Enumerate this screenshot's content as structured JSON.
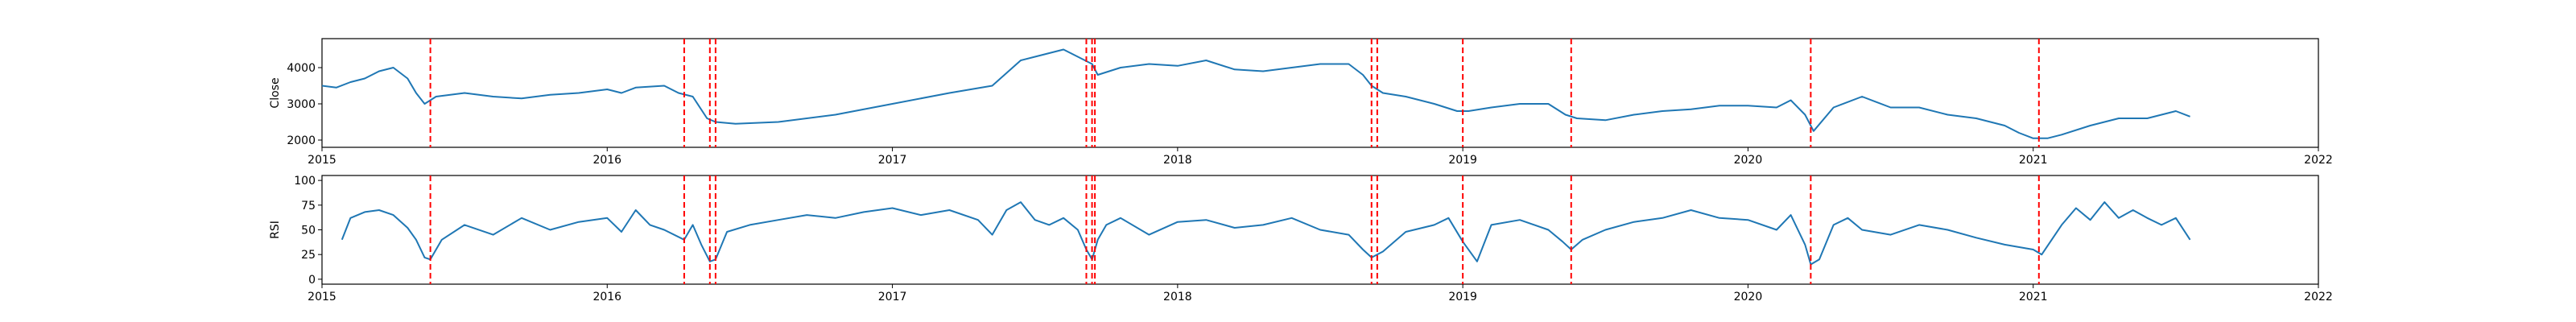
{
  "chart_data": [
    {
      "type": "line",
      "ylabel": "Close",
      "xlim": [
        2015.0,
        2022.0
      ],
      "ylim": [
        1800,
        4800
      ],
      "x_ticks": [
        "2015",
        "2016",
        "2017",
        "2018",
        "2019",
        "2020",
        "2021",
        "2022"
      ],
      "y_ticks": [
        2000,
        3000,
        4000
      ],
      "line_color": "#1f77b4",
      "marker_color": "#ff0000",
      "marker_style": "dashed vertical lines",
      "event_dates": [
        2015.38,
        2016.27,
        2016.36,
        2016.38,
        2017.68,
        2017.7,
        2017.71,
        2018.68,
        2018.7,
        2019.0,
        2019.38,
        2020.22,
        2021.02
      ],
      "series": [
        {
          "x": [
            2015.0,
            2015.05,
            2015.1,
            2015.15,
            2015.2,
            2015.25,
            2015.3,
            2015.33,
            2015.36,
            2015.4,
            2015.5,
            2015.6,
            2015.7,
            2015.8,
            2015.9,
            2016.0,
            2016.05,
            2016.1,
            2016.2,
            2016.25,
            2016.3,
            2016.35,
            2016.38,
            2016.45,
            2016.6,
            2016.8,
            2017.0,
            2017.2,
            2017.35,
            2017.45,
            2017.5,
            2017.55,
            2017.6,
            2017.65,
            2017.7,
            2017.72,
            2017.8,
            2017.9,
            2018.0,
            2018.1,
            2018.2,
            2018.3,
            2018.4,
            2018.5,
            2018.6,
            2018.65,
            2018.68,
            2018.72,
            2018.8,
            2018.9,
            2018.98,
            2019.02,
            2019.1,
            2019.2,
            2019.3,
            2019.36,
            2019.4,
            2019.5,
            2019.6,
            2019.7,
            2019.8,
            2019.9,
            2020.0,
            2020.1,
            2020.15,
            2020.2,
            2020.23,
            2020.3,
            2020.4,
            2020.5,
            2020.6,
            2020.7,
            2020.8,
            2020.9,
            2020.95,
            2021.0,
            2021.05,
            2021.1,
            2021.2,
            2021.3,
            2021.4,
            2021.5,
            2021.55
          ],
          "y": [
            3500,
            3450,
            3600,
            3700,
            3900,
            4000,
            3700,
            3300,
            3000,
            3200,
            3300,
            3200,
            3150,
            3250,
            3300,
            3400,
            3300,
            3450,
            3500,
            3300,
            3200,
            2600,
            2500,
            2450,
            2500,
            2700,
            3000,
            3300,
            3500,
            4200,
            4300,
            4400,
            4500,
            4300,
            4100,
            3800,
            4000,
            4100,
            4050,
            4200,
            3950,
            3900,
            4000,
            4100,
            4100,
            3800,
            3500,
            3300,
            3200,
            3000,
            2800,
            2800,
            2900,
            3000,
            3000,
            2700,
            2600,
            2550,
            2700,
            2800,
            2850,
            2950,
            2950,
            2900,
            3100,
            2700,
            2250,
            2900,
            3200,
            2900,
            2900,
            2700,
            2600,
            2400,
            2200,
            2050,
            2050,
            2150,
            2400,
            2600,
            2600,
            2800,
            2650
          ]
        }
      ]
    },
    {
      "type": "line",
      "ylabel": "RSI",
      "xlim": [
        2015.0,
        2022.0
      ],
      "ylim": [
        -5,
        105
      ],
      "x_ticks": [
        "2015",
        "2016",
        "2017",
        "2018",
        "2019",
        "2020",
        "2021",
        "2022"
      ],
      "y_ticks": [
        0,
        25,
        50,
        75,
        100
      ],
      "line_color": "#1f77b4",
      "marker_color": "#ff0000",
      "marker_style": "dashed vertical lines",
      "event_dates": [
        2015.38,
        2016.27,
        2016.36,
        2016.38,
        2017.68,
        2017.7,
        2017.71,
        2018.68,
        2018.7,
        2019.0,
        2019.38,
        2020.22,
        2021.02
      ],
      "series": [
        {
          "x": [
            2015.07,
            2015.1,
            2015.15,
            2015.2,
            2015.25,
            2015.3,
            2015.33,
            2015.36,
            2015.38,
            2015.42,
            2015.5,
            2015.6,
            2015.7,
            2015.8,
            2015.9,
            2016.0,
            2016.05,
            2016.1,
            2016.15,
            2016.2,
            2016.27,
            2016.3,
            2016.33,
            2016.36,
            2016.38,
            2016.42,
            2016.5,
            2016.6,
            2016.7,
            2016.8,
            2016.9,
            2017.0,
            2017.1,
            2017.2,
            2017.3,
            2017.35,
            2017.4,
            2017.45,
            2017.5,
            2017.55,
            2017.6,
            2017.65,
            2017.68,
            2017.7,
            2017.72,
            2017.75,
            2017.8,
            2017.9,
            2018.0,
            2018.1,
            2018.2,
            2018.3,
            2018.4,
            2018.5,
            2018.6,
            2018.65,
            2018.68,
            2018.72,
            2018.8,
            2018.9,
            2018.95,
            2019.0,
            2019.05,
            2019.1,
            2019.2,
            2019.3,
            2019.35,
            2019.38,
            2019.42,
            2019.5,
            2019.6,
            2019.7,
            2019.8,
            2019.9,
            2020.0,
            2020.1,
            2020.15,
            2020.2,
            2020.22,
            2020.25,
            2020.3,
            2020.35,
            2020.4,
            2020.5,
            2020.6,
            2020.7,
            2020.8,
            2020.9,
            2021.0,
            2021.03,
            2021.1,
            2021.15,
            2021.2,
            2021.25,
            2021.3,
            2021.35,
            2021.4,
            2021.45,
            2021.5,
            2021.55
          ],
          "y": [
            40,
            62,
            68,
            70,
            65,
            52,
            40,
            22,
            20,
            40,
            55,
            45,
            62,
            50,
            58,
            62,
            48,
            70,
            55,
            50,
            40,
            55,
            35,
            18,
            20,
            48,
            55,
            60,
            65,
            62,
            68,
            72,
            65,
            70,
            60,
            45,
            70,
            78,
            60,
            55,
            62,
            50,
            30,
            20,
            40,
            55,
            62,
            45,
            58,
            60,
            52,
            55,
            62,
            50,
            45,
            30,
            22,
            28,
            48,
            55,
            62,
            38,
            18,
            55,
            60,
            50,
            38,
            30,
            40,
            50,
            58,
            62,
            70,
            62,
            60,
            50,
            65,
            35,
            15,
            20,
            55,
            62,
            50,
            45,
            55,
            50,
            42,
            35,
            30,
            25,
            55,
            72,
            60,
            78,
            62,
            70,
            62,
            55,
            62,
            40
          ]
        }
      ]
    }
  ]
}
